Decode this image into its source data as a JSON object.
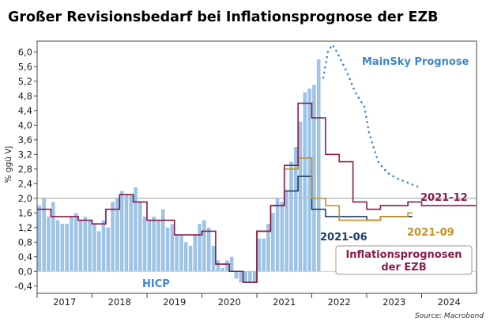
{
  "chart_data": {
    "type": "bar",
    "title": "Großer Revisionsbedarf bei Inflationsprognose der EZB",
    "ylabel": "% ggü Vj",
    "source": "Source: Macrobond",
    "ylim": [
      -0.6,
      6.3
    ],
    "yticks": [
      "-0,4",
      "0,0",
      "0,4",
      "0,8",
      "1,2",
      "1,6",
      "2,0",
      "2,4",
      "2,8",
      "3,2",
      "3,6",
      "4,0",
      "4,4",
      "4,8",
      "5,2",
      "5,6",
      "6,0"
    ],
    "ytick_values": [
      -0.4,
      0.0,
      0.4,
      0.8,
      1.2,
      1.6,
      2.0,
      2.4,
      2.8,
      3.2,
      3.6,
      4.0,
      4.4,
      4.8,
      5.2,
      5.6,
      6.0
    ],
    "x_start": "2017-01",
    "x_end": "2024-12",
    "xtick_labels": [
      "2017",
      "2018",
      "2019",
      "2020",
      "2021",
      "2022",
      "2023",
      "2024"
    ],
    "reference_line": 2.0,
    "colors": {
      "hicp": "#9dc3e6",
      "fc_2021_12": "#8b1a4a",
      "fc_2021_09": "#c8902a",
      "fc_2021_06": "#1f3e6e",
      "mainsky": "#3e86c8",
      "legend_box_text": "#8b1a4a"
    },
    "annotations": {
      "hicp_label": "HICP",
      "mainsky_label": "MainSky Prognose",
      "fc_2021_12_label": "2021-12",
      "fc_2021_09_label": "2021-09",
      "fc_2021_06_label": "2021-06",
      "legend_box_line1": "Inflationsprognosen",
      "legend_box_line2": "der EZB"
    },
    "series": [
      {
        "name": "HICP",
        "kind": "bar",
        "start": "2017-01",
        "values": [
          1.8,
          2.0,
          1.5,
          1.9,
          1.4,
          1.3,
          1.3,
          1.5,
          1.6,
          1.4,
          1.5,
          1.4,
          1.3,
          1.1,
          1.4,
          1.2,
          1.9,
          2.0,
          2.2,
          2.1,
          2.1,
          2.3,
          1.9,
          1.5,
          1.4,
          1.5,
          1.4,
          1.7,
          1.2,
          1.3,
          1.0,
          1.0,
          0.8,
          0.7,
          1.0,
          1.3,
          1.4,
          1.2,
          0.7,
          0.3,
          0.1,
          0.3,
          0.4,
          -0.2,
          -0.3,
          -0.3,
          -0.3,
          -0.3,
          0.9,
          0.9,
          1.3,
          1.6,
          2.0,
          1.9,
          2.2,
          3.0,
          3.4,
          4.1,
          4.9,
          5.0,
          5.1,
          5.8
        ]
      },
      {
        "name": "Inflationsprognose 2021-12 (mit Historie)",
        "kind": "step",
        "points": [
          [
            "2017-01",
            1.7
          ],
          [
            "2017-04",
            1.5
          ],
          [
            "2017-10",
            1.4
          ],
          [
            "2018-01",
            1.3
          ],
          [
            "2018-04",
            1.7
          ],
          [
            "2018-07",
            2.1
          ],
          [
            "2018-10",
            1.9
          ],
          [
            "2019-01",
            1.4
          ],
          [
            "2019-04",
            1.4
          ],
          [
            "2019-07",
            1.0
          ],
          [
            "2019-10",
            1.0
          ],
          [
            "2020-01",
            1.1
          ],
          [
            "2020-04",
            0.2
          ],
          [
            "2020-07",
            0.0
          ],
          [
            "2020-10",
            -0.3
          ],
          [
            "2021-01",
            1.1
          ],
          [
            "2021-04",
            1.8
          ],
          [
            "2021-07",
            2.9
          ],
          [
            "2021-10",
            4.6
          ],
          [
            "2022-01",
            4.2
          ],
          [
            "2022-04",
            3.2
          ],
          [
            "2022-07",
            3.0
          ],
          [
            "2022-10",
            1.9
          ],
          [
            "2023-01",
            1.7
          ],
          [
            "2023-04",
            1.8
          ],
          [
            "2023-07",
            1.8
          ],
          [
            "2023-10",
            1.9
          ],
          [
            "2024-01",
            1.8
          ],
          [
            "2024-12",
            1.8
          ]
        ]
      },
      {
        "name": "Inflationsprognose 2021-09",
        "kind": "step",
        "points": [
          [
            "2020-10",
            -0.3
          ],
          [
            "2021-01",
            1.1
          ],
          [
            "2021-04",
            1.8
          ],
          [
            "2021-07",
            2.8
          ],
          [
            "2021-10",
            3.1
          ],
          [
            "2022-01",
            2.0
          ],
          [
            "2022-04",
            1.8
          ],
          [
            "2022-07",
            1.4
          ],
          [
            "2023-01",
            1.4
          ],
          [
            "2023-04",
            1.5
          ],
          [
            "2023-10",
            1.6
          ]
        ]
      },
      {
        "name": "Inflationsprognose 2021-06",
        "kind": "step",
        "points": [
          [
            "2020-10",
            -0.3
          ],
          [
            "2021-01",
            1.1
          ],
          [
            "2021-04",
            1.8
          ],
          [
            "2021-07",
            2.2
          ],
          [
            "2021-10",
            2.6
          ],
          [
            "2022-01",
            1.7
          ],
          [
            "2022-04",
            1.5
          ],
          [
            "2023-01",
            1.4
          ],
          [
            "2023-04",
            1.5
          ],
          [
            "2023-10",
            1.5
          ]
        ]
      },
      {
        "name": "MainSky Prognose",
        "kind": "dotted",
        "points": [
          [
            "2022-03",
            5.3
          ],
          [
            "2022-04",
            6.0
          ],
          [
            "2022-05",
            6.2
          ],
          [
            "2022-06",
            6.0
          ],
          [
            "2022-08",
            5.5
          ],
          [
            "2022-10",
            4.9
          ],
          [
            "2022-12",
            4.5
          ],
          [
            "2023-01",
            3.8
          ],
          [
            "2023-03",
            3.0
          ],
          [
            "2023-05",
            2.7
          ],
          [
            "2023-07",
            2.55
          ],
          [
            "2023-09",
            2.45
          ],
          [
            "2023-11",
            2.35
          ],
          [
            "2023-12",
            2.3
          ]
        ]
      }
    ]
  }
}
